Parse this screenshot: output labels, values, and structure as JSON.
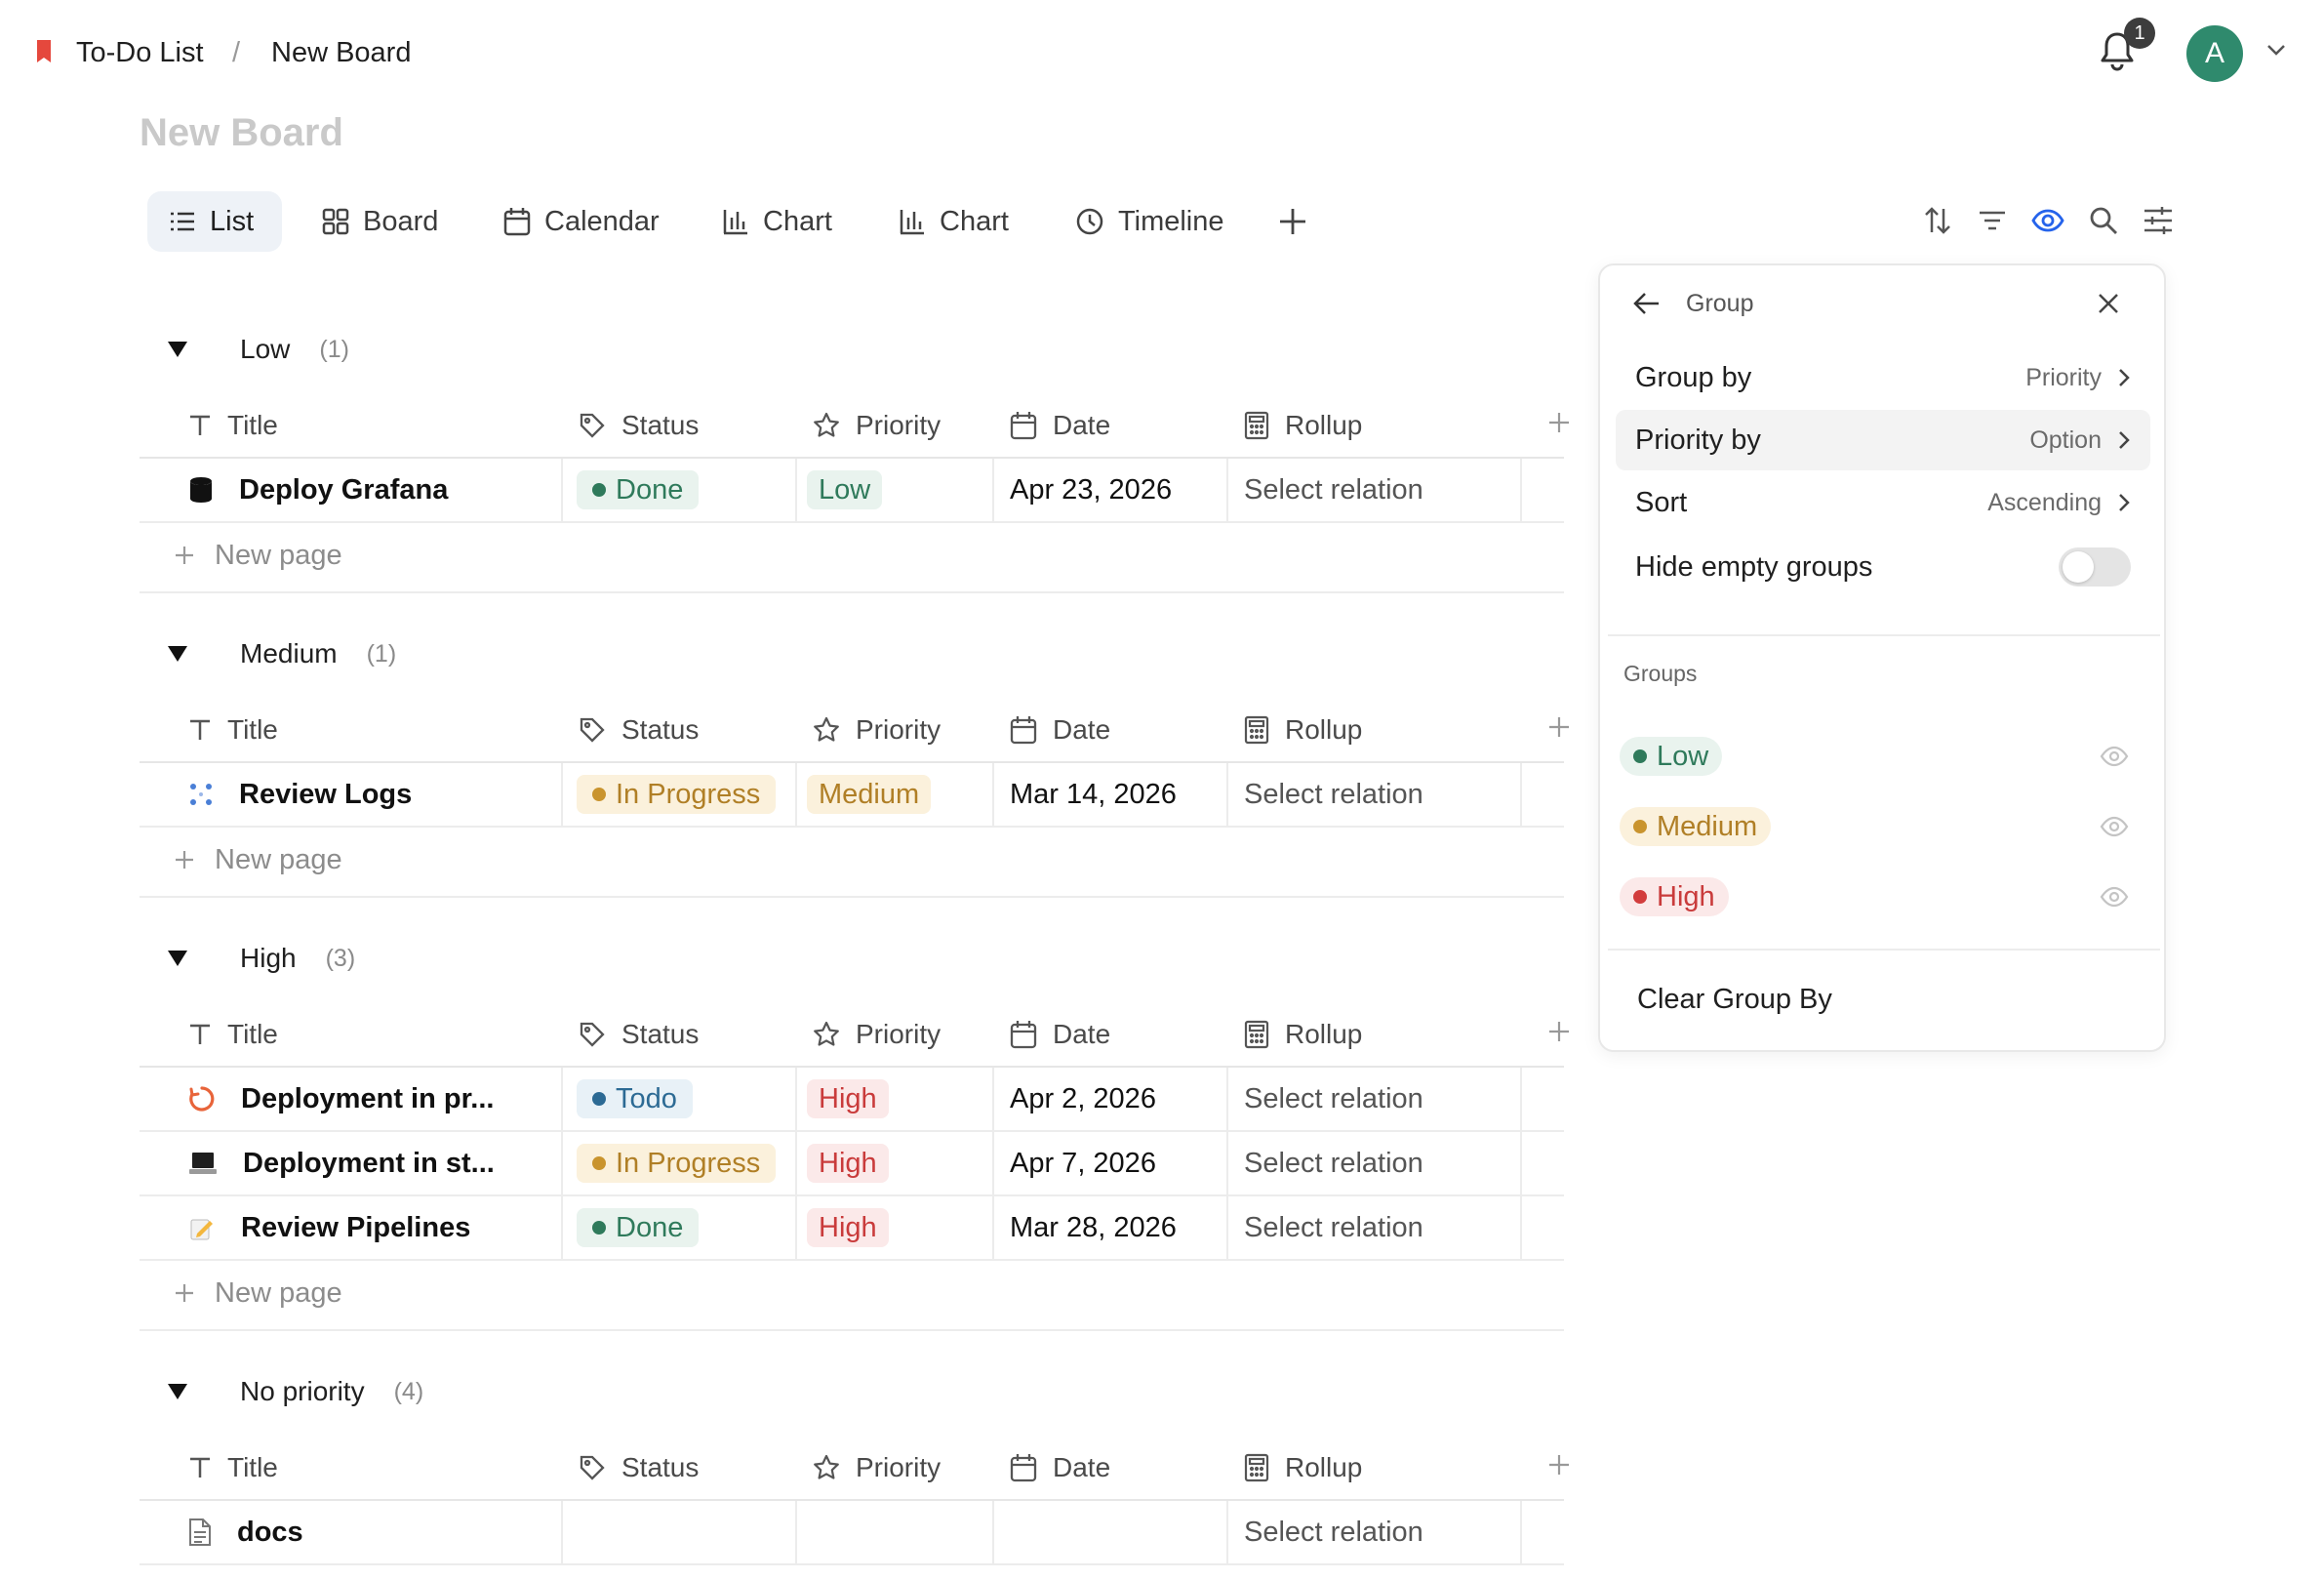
{
  "breadcrumb": {
    "parent": "To-Do List",
    "separator": "/",
    "current": "New Board"
  },
  "header": {
    "notification_count": "1",
    "avatar_initial": "A"
  },
  "page_title": "New Board",
  "tabs": [
    {
      "label": "List",
      "icon": "list-icon"
    },
    {
      "label": "Board",
      "icon": "board-icon"
    },
    {
      "label": "Calendar",
      "icon": "calendar-icon"
    },
    {
      "label": "Chart",
      "icon": "bar-chart-icon"
    },
    {
      "label": "Chart",
      "icon": "bar-chart-icon"
    },
    {
      "label": "Timeline",
      "icon": "clock-icon"
    }
  ],
  "columns": {
    "title": "Title",
    "status": "Status",
    "priority": "Priority",
    "date": "Date",
    "rollup": "Rollup"
  },
  "new_page_label": "New page",
  "groups": [
    {
      "name": "Low",
      "count": "(1)",
      "rows": [
        {
          "title": "Deploy Grafana",
          "icon": "database-icon",
          "status": "Done",
          "priority": "Low",
          "date": "Apr 23, 2026",
          "rollup": "Select relation"
        }
      ]
    },
    {
      "name": "Medium",
      "count": "(1)",
      "rows": [
        {
          "title": "Review Logs",
          "icon": "dots-grid-icon",
          "status": "In Progress",
          "priority": "Medium",
          "date": "Mar 14, 2026",
          "rollup": "Select relation"
        }
      ]
    },
    {
      "name": "High",
      "count": "(3)",
      "rows": [
        {
          "title": "Deployment in pr...",
          "icon": "loading-icon",
          "status": "Todo",
          "priority": "High",
          "date": "Apr 2, 2026",
          "rollup": "Select relation"
        },
        {
          "title": "Deployment in st...",
          "icon": "laptop-icon",
          "status": "In Progress",
          "priority": "High",
          "date": "Apr 7, 2026",
          "rollup": "Select relation"
        },
        {
          "title": "Review Pipelines",
          "icon": "memo-icon",
          "status": "Done",
          "priority": "High",
          "date": "Mar 28, 2026",
          "rollup": "Select relation"
        }
      ]
    },
    {
      "name": "No priority",
      "count": "(4)",
      "rows": [
        {
          "title": "docs",
          "icon": "document-icon",
          "status": "",
          "priority": "",
          "date": "",
          "rollup": "Select relation"
        }
      ]
    }
  ],
  "colors": {
    "done_bg": "#e9f3ee",
    "done_fg": "#2f7a5b",
    "done_dot": "#2f7a5b",
    "progress_bg": "#fbf1dc",
    "progress_fg": "#b07f26",
    "progress_dot": "#c9942e",
    "todo_bg": "#e8f1f7",
    "todo_fg": "#2c6a94",
    "todo_dot": "#2c6a94",
    "low_bg": "#e9f3ee",
    "low_fg": "#2f7a5b",
    "medium_bg": "#fbf1dc",
    "medium_fg": "#b07f26",
    "high_bg": "#fbe9e9",
    "high_fg": "#c93b3b",
    "high_dot": "#d23d3d",
    "accent_blue": "#2563eb"
  },
  "panel": {
    "title": "Group",
    "group_by": {
      "label": "Group by",
      "value": "Priority"
    },
    "priority_by": {
      "label": "Priority by",
      "value": "Option"
    },
    "sort": {
      "label": "Sort",
      "value": "Ascending"
    },
    "hide_empty": {
      "label": "Hide empty groups",
      "enabled": false
    },
    "groups_heading": "Groups",
    "groups": [
      "Low",
      "Medium",
      "High"
    ],
    "clear_label": "Clear Group By"
  }
}
